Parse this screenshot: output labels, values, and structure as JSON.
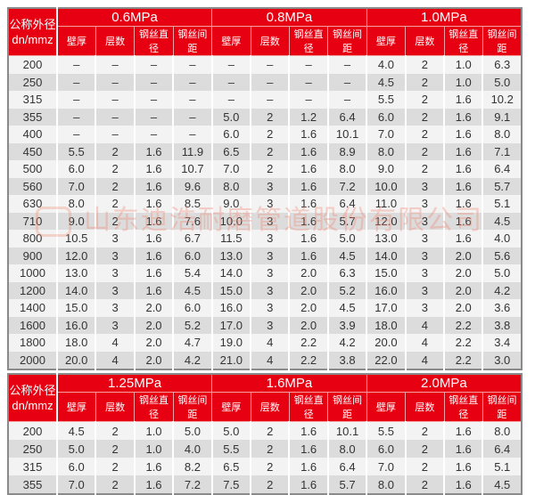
{
  "header_label": [
    "公称外径",
    "dn/mmz"
  ],
  "sub_columns": [
    "壁厚",
    "层数",
    "钢丝直径",
    "钢丝间距"
  ],
  "colors": {
    "header_red": "#e60012",
    "row_light": "#f3f3f3",
    "row_dark": "#dcdcdc"
  },
  "watermark": "山东迪浩耐磨管道股份有限公司",
  "table1": {
    "pressures": [
      "0.6MPa",
      "0.8MPa",
      "1.0MPa"
    ],
    "rows": [
      [
        "200",
        "–",
        "–",
        "–",
        "–",
        "–",
        "–",
        "–",
        "–",
        "4.0",
        "2",
        "1.0",
        "6.3"
      ],
      [
        "250",
        "–",
        "–",
        "–",
        "–",
        "–",
        "–",
        "–",
        "–",
        "4.5",
        "2",
        "1.0",
        "5.0"
      ],
      [
        "315",
        "–",
        "–",
        "–",
        "–",
        "–",
        "–",
        "–",
        "–",
        "5.5",
        "2",
        "1.6",
        "10.2"
      ],
      [
        "355",
        "–",
        "–",
        "–",
        "–",
        "5.0",
        "2",
        "1.2",
        "6.4",
        "6.0",
        "2",
        "1.6",
        "9.1"
      ],
      [
        "400",
        "–",
        "–",
        "–",
        "–",
        "6.0",
        "2",
        "1.6",
        "10.1",
        "7.0",
        "2",
        "1.6",
        "8.0"
      ],
      [
        "450",
        "5.5",
        "2",
        "1.6",
        "11.9",
        "6.5",
        "2",
        "1.6",
        "8.9",
        "8.0",
        "2",
        "1.6",
        "7.1"
      ],
      [
        "500",
        "6.0",
        "2",
        "1.6",
        "10.7",
        "7.0",
        "2",
        "1.6",
        "8.0",
        "9.0",
        "2",
        "1.6",
        "6.4"
      ],
      [
        "560",
        "7.0",
        "2",
        "1.6",
        "9.6",
        "8.0",
        "3",
        "1.6",
        "7.2",
        "10.0",
        "3",
        "1.6",
        "5.7"
      ],
      [
        "630",
        "8.0",
        "2",
        "1.6",
        "8.5",
        "9.0",
        "3",
        "1.6",
        "6.4",
        "11.0",
        "3",
        "1.6",
        "5.1"
      ],
      [
        "710",
        "9.0",
        "2",
        "1.6",
        "7.6",
        "10.0",
        "3",
        "1.6",
        "5.7",
        "12.0",
        "3",
        "1.6",
        "4.5"
      ],
      [
        "800",
        "10.5",
        "3",
        "1.6",
        "6.7",
        "11.5",
        "3",
        "1.6",
        "5.0",
        "13.0",
        "3",
        "1.6",
        "4.0"
      ],
      [
        "900",
        "12.0",
        "3",
        "1.6",
        "6.0",
        "13.0",
        "3",
        "1.6",
        "4.5",
        "14.0",
        "3",
        "2.0",
        "5.6"
      ],
      [
        "1000",
        "13.0",
        "3",
        "1.6",
        "5.4",
        "14.0",
        "3",
        "2.0",
        "6.3",
        "15.0",
        "3",
        "2.0",
        "5.0"
      ],
      [
        "1200",
        "14.0",
        "3",
        "1.6",
        "4.5",
        "15.0",
        "3",
        "2.0",
        "5.2",
        "16.0",
        "3",
        "2.0",
        "4.2"
      ],
      [
        "1400",
        "15.0",
        "3",
        "2.0",
        "6.0",
        "16.0",
        "3",
        "2.0",
        "4.5",
        "17.0",
        "3",
        "2.0",
        "3.6"
      ],
      [
        "1600",
        "16.0",
        "3",
        "2.0",
        "5.2",
        "17.0",
        "3",
        "2.0",
        "3.9",
        "18.0",
        "4",
        "2.2",
        "3.8"
      ],
      [
        "1800",
        "18.0",
        "4",
        "2.0",
        "4.7",
        "19.0",
        "4",
        "2.2",
        "4.2",
        "20.0",
        "4",
        "2.2",
        "3.4"
      ],
      [
        "2000",
        "20.0",
        "4",
        "2.0",
        "4.2",
        "21.0",
        "4",
        "2.2",
        "3.8",
        "22.0",
        "4",
        "2.2",
        "3.0"
      ]
    ]
  },
  "table2": {
    "pressures": [
      "1.25MPa",
      "1.6MPa",
      "2.0MPa"
    ],
    "rows": [
      [
        "200",
        "4.5",
        "2",
        "1.0",
        "5.0",
        "5.0",
        "2",
        "1.6",
        "10.1",
        "5.5",
        "2",
        "1.6",
        "8.0"
      ],
      [
        "250",
        "5.0",
        "2",
        "1.0",
        "4.0",
        "5.5",
        "2",
        "1.6",
        "8.0",
        "6.0",
        "2",
        "1.6",
        "6.4"
      ],
      [
        "315",
        "6.0",
        "2",
        "1.6",
        "8.2",
        "6.5",
        "2",
        "1.6",
        "6.4",
        "7.0",
        "2",
        "1.6",
        "5.1"
      ],
      [
        "355",
        "7.0",
        "2",
        "1.6",
        "7.2",
        "7.5",
        "2",
        "1.6",
        "5.7",
        "8.0",
        "2",
        "1.6",
        "4.5"
      ]
    ]
  }
}
